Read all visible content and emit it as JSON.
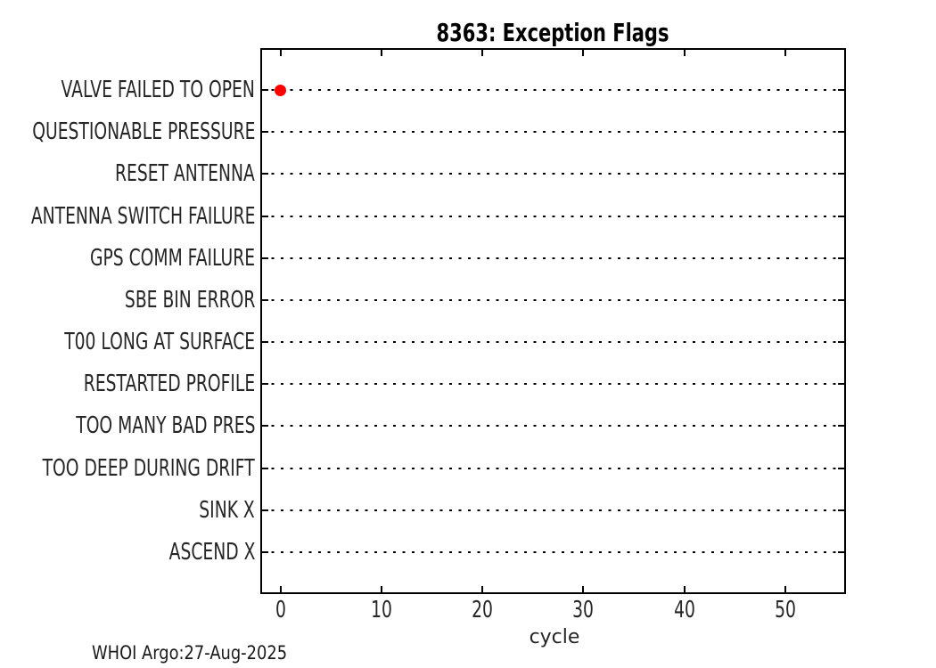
{
  "footer": "WHOI Argo:27-Aug-2025",
  "chart_data": {
    "type": "scatter",
    "title": "8363: Exception Flags",
    "xlabel": "cycle",
    "ylabel": "",
    "categories": [
      "VALVE FAILED TO OPEN",
      "QUESTIONABLE PRESSURE",
      "RESET ANTENNA",
      "ANTENNA SWITCH FAILURE",
      "GPS COMM FAILURE",
      "SBE BIN ERROR",
      "T00 LONG AT SURFACE",
      "RESTARTED PROFILE",
      "TOO MANY BAD PRES",
      "TOO DEEP DURING DRIFT",
      "SINK X",
      "ASCEND X"
    ],
    "x_ticks": [
      0,
      10,
      20,
      30,
      40,
      50
    ],
    "xlim": [
      -2,
      56
    ],
    "points": [
      {
        "category": "VALVE FAILED TO OPEN",
        "x": 0
      }
    ],
    "grid": "horizontal-dotted",
    "legend": "none",
    "colors": {
      "marker": "#ff0000",
      "axis": "#000000",
      "text": "#262626",
      "background": "#ffffff"
    }
  }
}
